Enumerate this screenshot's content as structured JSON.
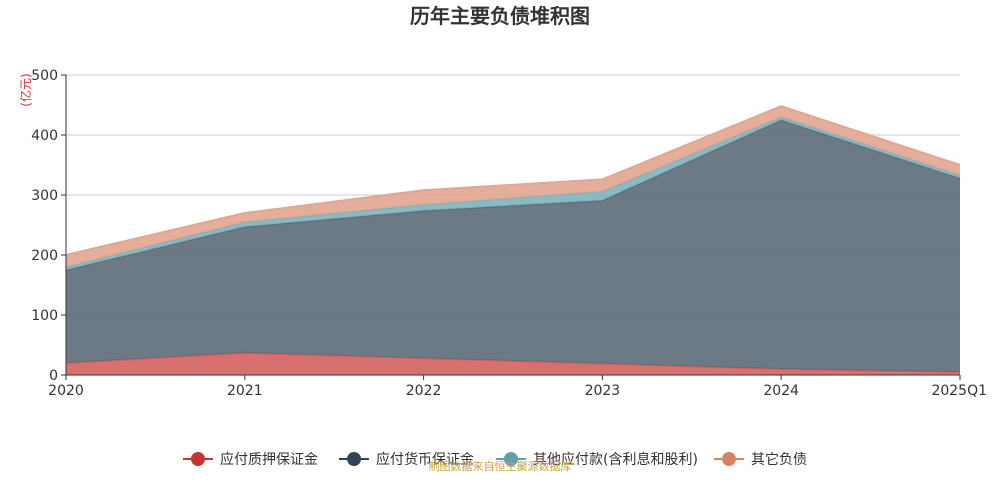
{
  "chart_data": {
    "type": "area",
    "stacked": true,
    "title": "历年主要负债堆积图",
    "unit_label": "(亿元)",
    "categories": [
      "2020",
      "2021",
      "2022",
      "2023",
      "2024",
      "2025Q1"
    ],
    "ylim": [
      0,
      500
    ],
    "yticks": [
      0,
      100,
      200,
      300,
      400,
      500
    ],
    "grid": true,
    "legend_position": "bottom",
    "series": [
      {
        "name": "应付质押保证金",
        "color": "#d46060",
        "values": [
          20,
          37,
          28,
          19,
          10,
          5
        ]
      },
      {
        "name": "应付货币保证金",
        "color": "#5b6b78",
        "values": [
          155,
          210,
          246,
          272,
          415,
          323
        ]
      },
      {
        "name": "其他应付款(含利息和股利)",
        "color": "#7fb3bd",
        "values": [
          5,
          8,
          10,
          15,
          5,
          5
        ]
      },
      {
        "name": "其它负债",
        "color": "#e2a58f",
        "values": [
          20,
          15,
          24,
          20,
          18,
          17
        ]
      }
    ],
    "legend_marker_colors": [
      "#c23531",
      "#2f4554",
      "#61a0a8",
      "#d48265"
    ],
    "source": "制图数据来自恒生聚源数据库"
  }
}
